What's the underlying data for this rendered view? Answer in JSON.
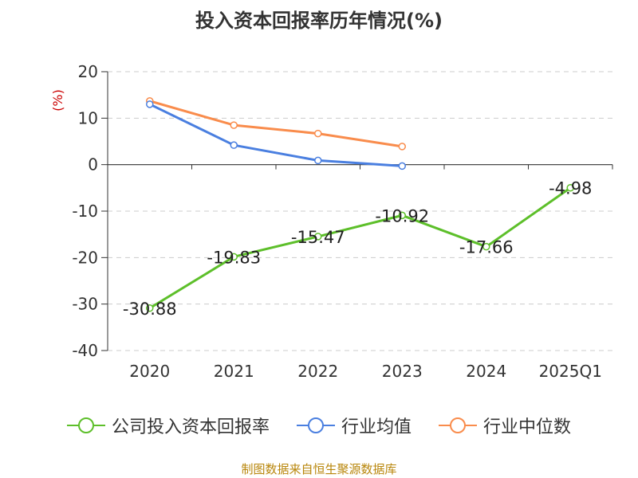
{
  "title": "投入资本回报率历年情况(%)",
  "source": "制图数据来自恒生聚源数据库",
  "chart_data": {
    "type": "line",
    "title": "投入资本回报率历年情况(%)",
    "ylabel": "(%)",
    "ylim": [
      -40,
      20
    ],
    "yticks": [
      20,
      10,
      0,
      -10,
      -20,
      -30,
      -40
    ],
    "categories": [
      "2020",
      "2021",
      "2022",
      "2023",
      "2024",
      "2025Q1"
    ],
    "series": [
      {
        "name": "公司投入资本回报率",
        "color": "#5dbf2a",
        "values": [
          -30.88,
          -19.83,
          -15.47,
          -10.92,
          -17.66,
          -4.98
        ],
        "labels": [
          "-30.88",
          "-19.83",
          "-15.47",
          "-10.92",
          "-17.66",
          "-4.98"
        ]
      },
      {
        "name": "行业均值",
        "color": "#4a7fe0",
        "values": [
          13.0,
          4.2,
          0.9,
          -0.3,
          null,
          null
        ]
      },
      {
        "name": "行业中位数",
        "color": "#f98c4c",
        "values": [
          13.7,
          8.5,
          6.7,
          3.9,
          null,
          null
        ]
      }
    ],
    "grid": true,
    "legend": "bottom"
  }
}
